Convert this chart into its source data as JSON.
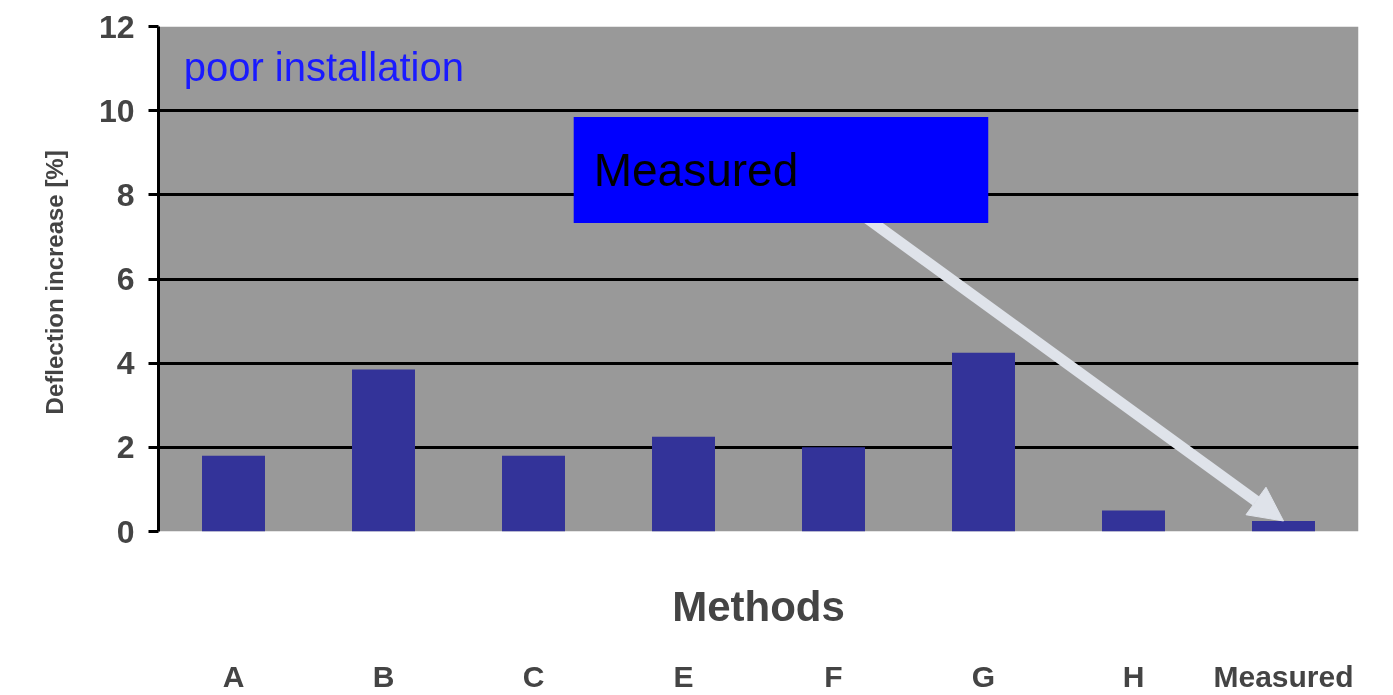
{
  "chart_data": {
    "type": "bar",
    "xlabel": "Methods",
    "ylabel": "Deflection  increase [%]",
    "categories": [
      "A",
      "B",
      "C",
      "E",
      "F",
      "G",
      "H",
      "Measured"
    ],
    "values": [
      1.8,
      3.85,
      1.8,
      2.25,
      2.0,
      4.25,
      0.5,
      0.25
    ],
    "color": "#333399",
    "ylim": [
      0,
      12
    ],
    "yticks": [
      0,
      2,
      4,
      6,
      8,
      10,
      12
    ],
    "grid": "y",
    "annotations": [
      "poor installation",
      {
        "text": "Measured",
        "x": "Measured",
        "y": 0.25
      }
    ]
  }
}
